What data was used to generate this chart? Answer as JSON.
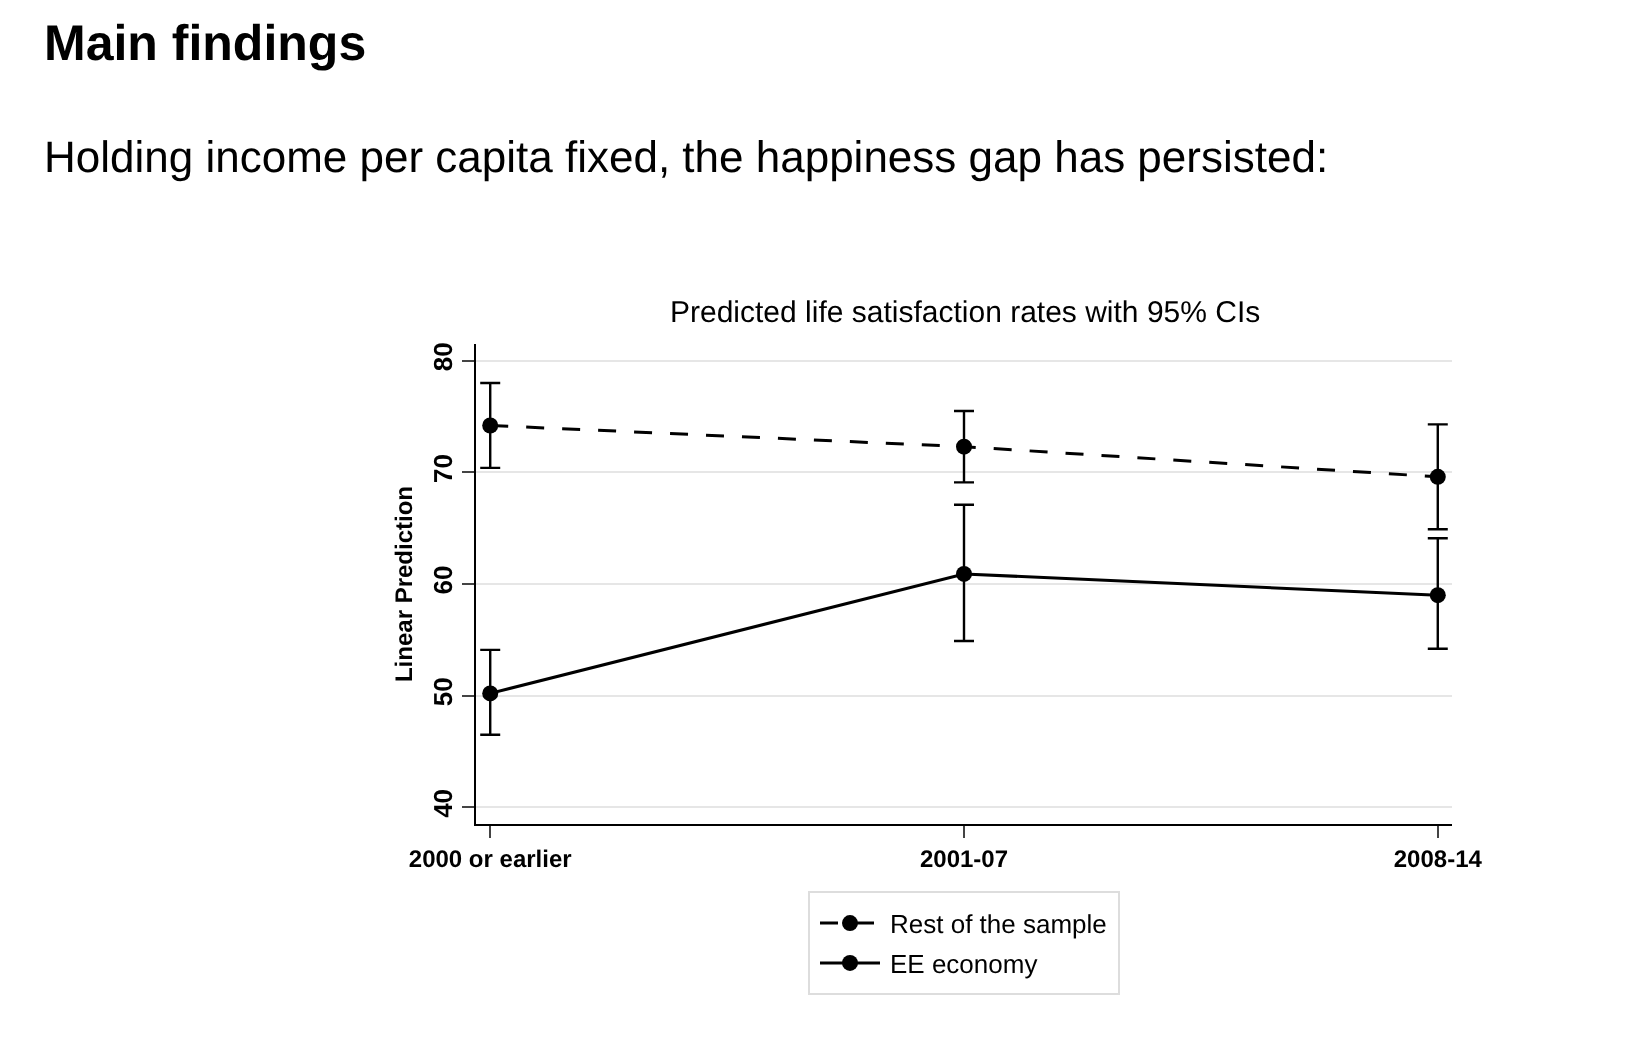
{
  "chart_data": {
    "type": "line",
    "title": "Main findings",
    "subtitle": "Holding income per capita fixed, the happiness gap has persisted:",
    "annotations": [
      "Predicted life satisfaction rates with 95% CIs"
    ],
    "ylabel": "Linear Prediction",
    "categories": [
      "2000 or earlier",
      "2001-07",
      "2008-14"
    ],
    "series": [
      {
        "name": "Rest of the sample",
        "color": "#000000",
        "line_style": "dashed",
        "values": [
          74.2,
          72.3,
          69.6
        ],
        "errors": [
          [
            70.4,
            78.0
          ],
          [
            69.1,
            75.5
          ],
          [
            64.9,
            74.3
          ]
        ]
      },
      {
        "name": "EE economy",
        "color": "#000000",
        "line_style": "solid",
        "values": [
          50.2,
          60.9,
          59.0
        ],
        "errors": [
          [
            46.5,
            54.1
          ],
          [
            54.9,
            67.1
          ],
          [
            54.2,
            64.1
          ]
        ]
      }
    ],
    "ylim": [
      38.5,
      81.5
    ],
    "yticks": [
      40,
      50,
      60,
      70,
      80
    ],
    "grid": "y",
    "legend": "bottom",
    "marker": "circle"
  }
}
